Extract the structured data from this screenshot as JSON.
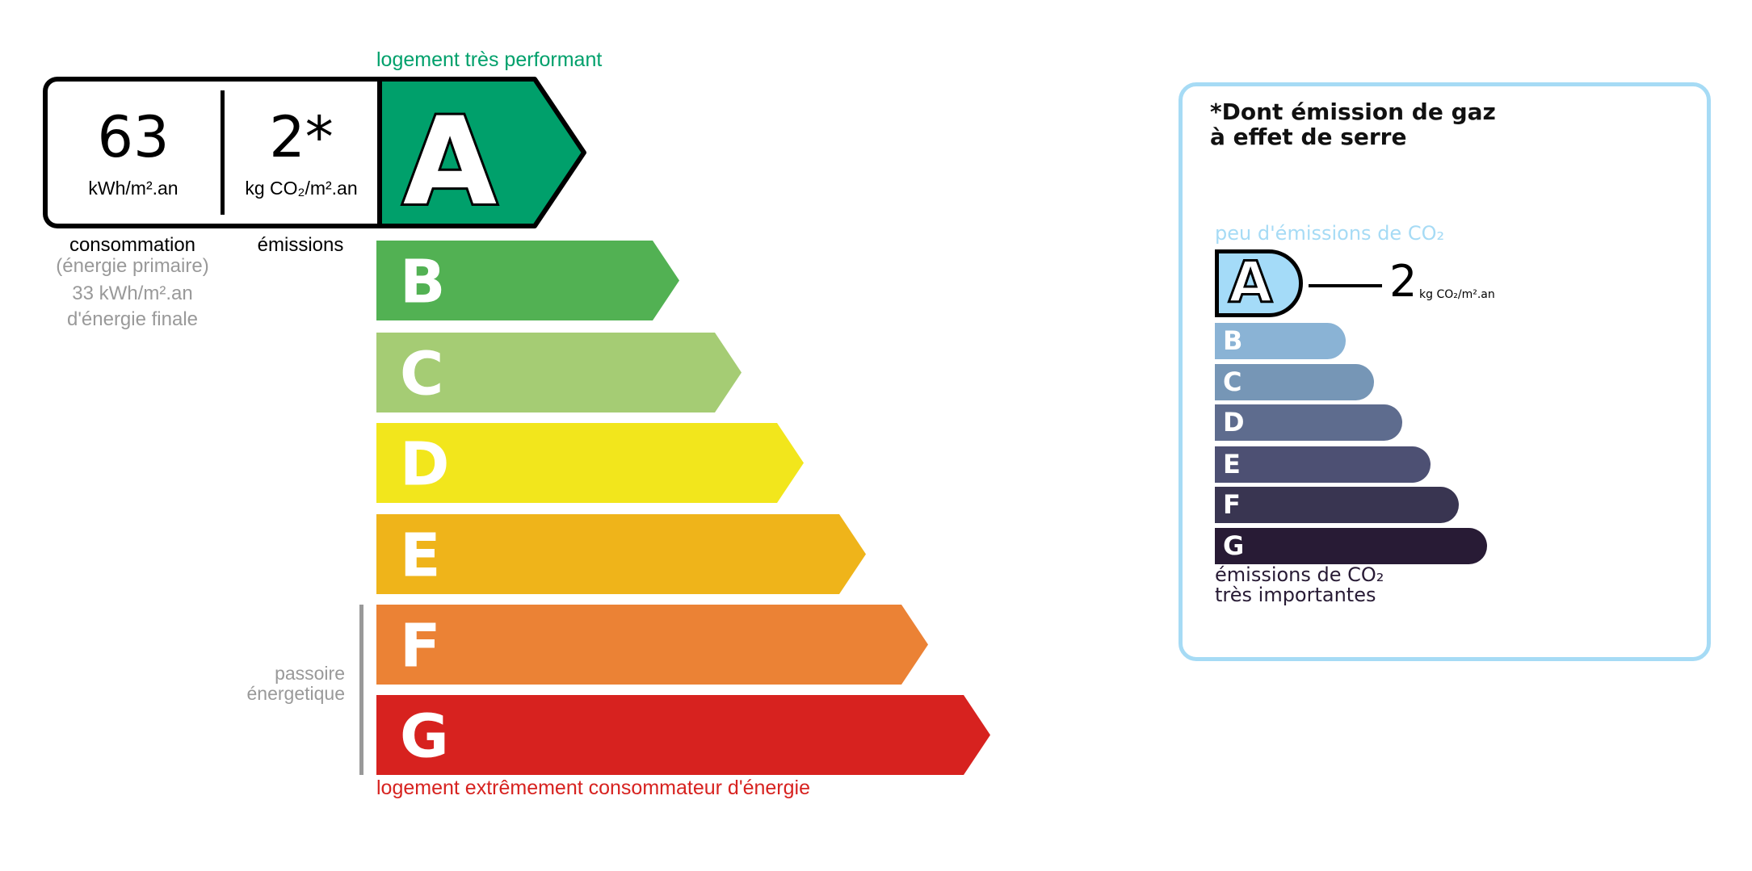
{
  "energy": {
    "top_label": "logement très performant",
    "bottom_label": "logement extrêmement consommateur d'énergie",
    "consumption_value": "63",
    "consumption_unit": "kWh/m².an",
    "emission_value": "2*",
    "emission_unit": "kg CO₂/m².an",
    "consumption_label": "consommation",
    "primary_label": "(énergie primaire)",
    "final_value": "33 kWh/m².an",
    "final_label": "d'énergie finale",
    "emissions_label": "émissions",
    "passoire_line1": "passoire",
    "passoire_line2": "énergetique",
    "current_class": "A",
    "classes": [
      {
        "letter": "A",
        "color": "#00a06b"
      },
      {
        "letter": "B",
        "color": "#52b153"
      },
      {
        "letter": "C",
        "color": "#a5cc74"
      },
      {
        "letter": "D",
        "color": "#f2e61c"
      },
      {
        "letter": "E",
        "color": "#efb41a"
      },
      {
        "letter": "F",
        "color": "#eb8235"
      },
      {
        "letter": "G",
        "color": "#d7221f"
      }
    ]
  },
  "ges": {
    "title_line1": "*Dont émission de gaz",
    "title_line2": "à effet de serre",
    "top_label": "peu d'émissions de CO₂",
    "bottom_line1": "émissions de CO₂",
    "bottom_line2": "très importantes",
    "current_class": "A",
    "value": "2",
    "unit": "kg CO₂/m².an",
    "classes": [
      {
        "letter": "A",
        "color": "#a4dbf8"
      },
      {
        "letter": "B",
        "color": "#8ab3d5"
      },
      {
        "letter": "C",
        "color": "#7696b6"
      },
      {
        "letter": "D",
        "color": "#5e6c8e"
      },
      {
        "letter": "E",
        "color": "#4d5073"
      },
      {
        "letter": "F",
        "color": "#393551"
      },
      {
        "letter": "G",
        "color": "#281b35"
      }
    ]
  }
}
